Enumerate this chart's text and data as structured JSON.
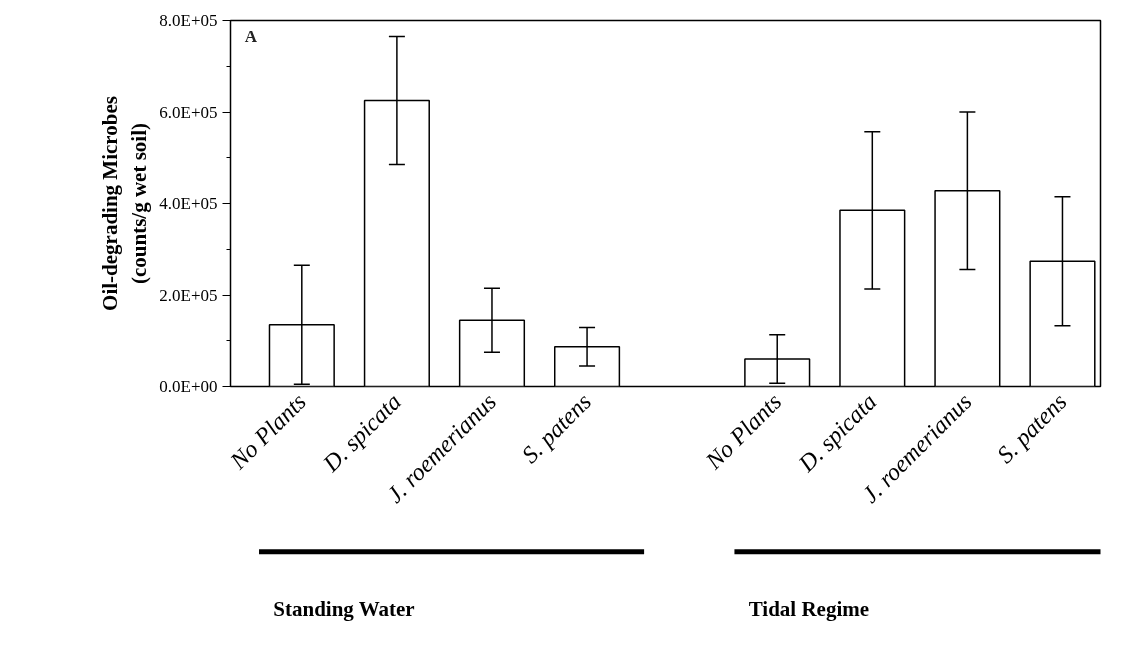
{
  "chart_data": {
    "type": "bar",
    "ylabel": "Oil-degrading Microbes\n(counts/g wet soil)",
    "categories": [
      "No Plants",
      "D. spicata",
      "J. roemerianus",
      "S. patens",
      null,
      "No Plants",
      "D. spicata",
      "J. roemerianus",
      "S. patens"
    ],
    "values": [
      135000,
      625000,
      145000,
      87000,
      null,
      60000,
      385000,
      428000,
      274000
    ],
    "errors": [
      130000,
      140000,
      70000,
      42000,
      null,
      53000,
      172000,
      172000,
      141000
    ],
    "color": "#ffffff",
    "ylim": [
      0,
      800000
    ],
    "yticks": [
      {
        "value": 0,
        "label": "0.0E+00"
      },
      {
        "value": 200000,
        "label": "2.0E+05"
      },
      {
        "value": 400000,
        "label": "4.0E+05"
      },
      {
        "value": 600000,
        "label": "6.0E+05"
      },
      {
        "value": 800000,
        "label": "8.0E+05"
      }
    ],
    "grid": false,
    "annotations": [
      "A",
      "Standing Water",
      "Tidal Regime"
    ]
  }
}
